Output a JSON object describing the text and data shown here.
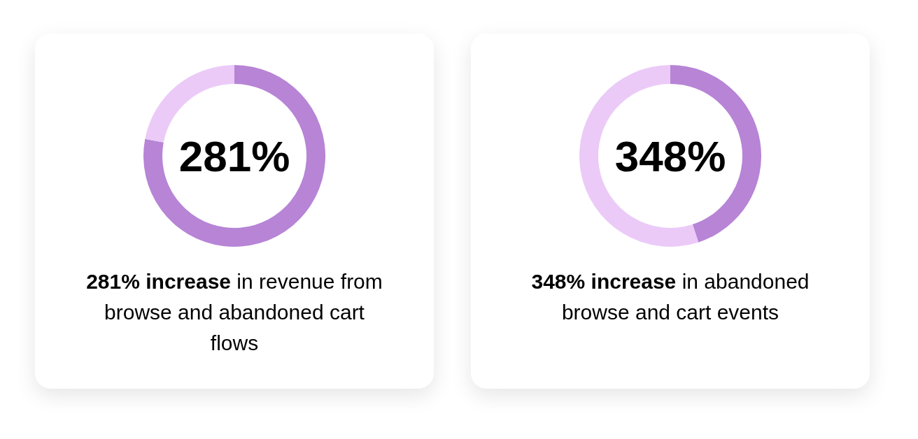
{
  "chart_data": [
    {
      "type": "donut",
      "title": "281%",
      "annotations": [
        "281% increase",
        "in revenue from browse and abandoned cart flows"
      ],
      "categories": [
        null,
        null
      ],
      "values": [
        78,
        22
      ],
      "colors": [
        "#b784d6",
        "#ebcaf8"
      ]
    },
    {
      "type": "donut",
      "title": "348%",
      "annotations": [
        "348% increase",
        "in abandoned browse and cart events"
      ],
      "categories": [
        null,
        null
      ],
      "values": [
        45,
        55
      ],
      "colors": [
        "#b784d6",
        "#ebcaf8"
      ]
    }
  ]
}
